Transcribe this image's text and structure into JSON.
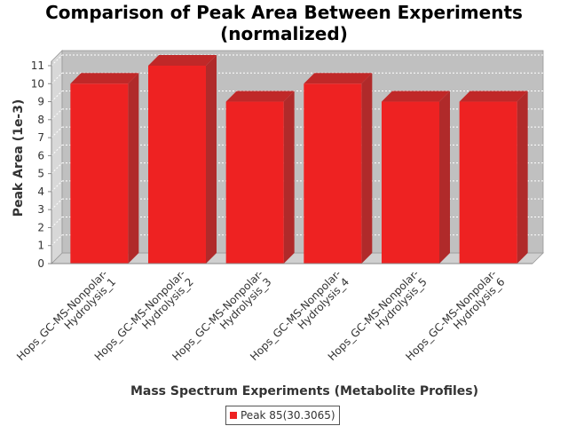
{
  "chart_data": {
    "type": "bar",
    "title_lines": [
      "Comparison of Peak Area Between Experiments",
      "(normalized)"
    ],
    "xlabel": "Mass Spectrum Experiments (Metabolite Profiles)",
    "ylabel": "Peak Area (1e-3)",
    "categories": [
      [
        "Hops_GC-MS-Nonpolar-",
        "Hydrolysis_1"
      ],
      [
        "Hops_GC-MS-Nonpolar-",
        "Hydrolysis_2"
      ],
      [
        "Hops_GC-MS-Nonpolar-",
        "Hydrolysis_3"
      ],
      [
        "Hops_GC-MS-Nonpolar-",
        "Hydrolysis_4"
      ],
      [
        "Hops_GC-MS-Nonpolar-",
        "Hydrolysis_5"
      ],
      [
        "Hops_GC-MS-Nonpolar-",
        "Hydrolysis_6"
      ]
    ],
    "series": [
      {
        "name": "Peak 85(30.3065)",
        "values": [
          10,
          11,
          9,
          10,
          9,
          9
        ],
        "color": "#ee2222"
      }
    ],
    "ylim": [
      0,
      11
    ],
    "yticks": [
      "0",
      "1",
      "2",
      "3",
      "4",
      "5",
      "6",
      "7",
      "8",
      "9",
      "10",
      "11"
    ],
    "grid": true,
    "legend_position": "bottom",
    "plot_background": "#c0c0c0"
  }
}
